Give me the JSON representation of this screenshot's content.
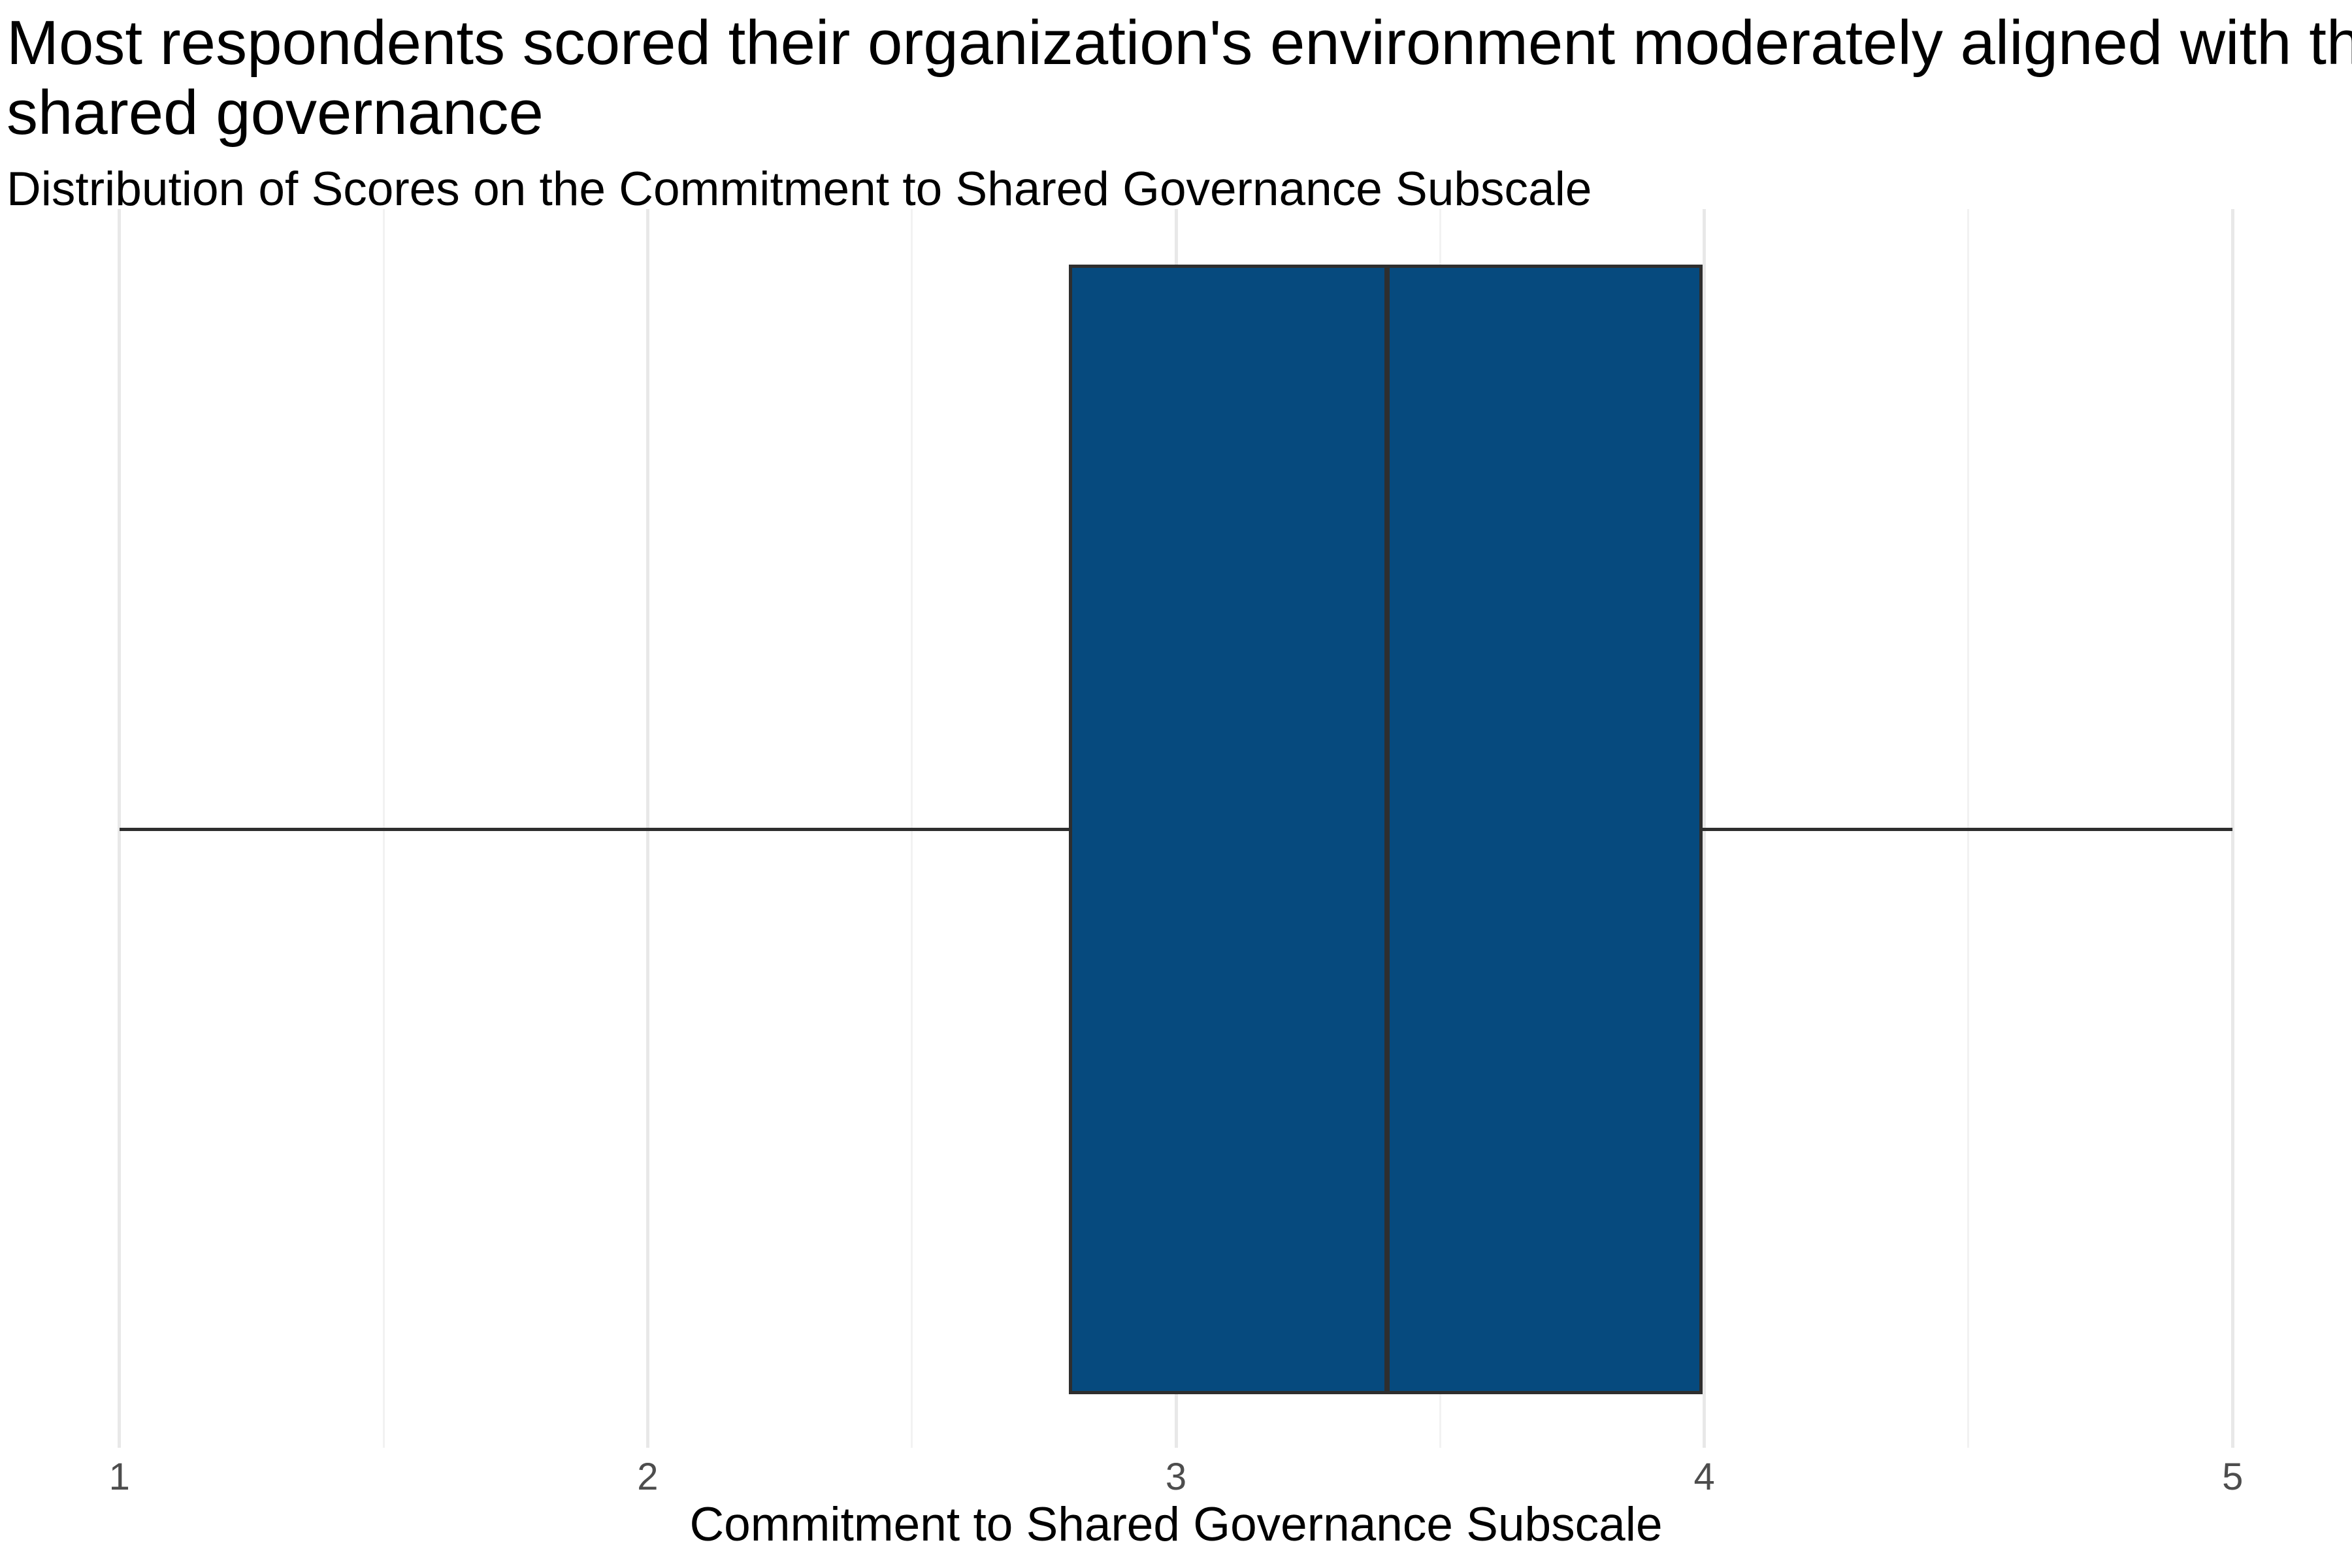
{
  "header": {
    "title_lines": [
      "Most respondents scored their organization's environment moderately aligned with the cor",
      "shared governance"
    ],
    "subtitle": "Distribution of Scores on the Commitment to Shared Governance Subscale"
  },
  "chart_data": {
    "type": "boxplot",
    "orientation": "horizontal",
    "title": "Most respondents scored their organization's environment moderately aligned with the cor / shared governance",
    "subtitle": "Distribution of Scores on the Commitment to Shared Governance Subscale",
    "xlabel": "Commitment to Shared Governance Subscale",
    "ylabel": "",
    "x_ticks": [
      1,
      2,
      3,
      4,
      5
    ],
    "x_minor_ticks": [
      1.5,
      2.5,
      3.5,
      4.5
    ],
    "xlim": [
      0.8,
      5.2
    ],
    "grid": "vertical major and minor gridlines, white panel background, no axis lines, no tick marks",
    "legend": "none",
    "series": [
      {
        "name": "Commitment to Shared Governance Subscale",
        "whisker_min": 1.0,
        "q1": 2.8,
        "median": 3.4,
        "q3": 4.0,
        "whisker_max": 5.0
      }
    ],
    "colors": {
      "box_fill": "#064A7E",
      "box_border": "#2E2E2E",
      "median_line": "#2E2E2E",
      "whisker": "#2E2E2E",
      "grid_major": "#E8E8E8",
      "grid_minor": "#F2F2F2",
      "tick_label": "#4D4D4D",
      "text": "#000000"
    }
  }
}
